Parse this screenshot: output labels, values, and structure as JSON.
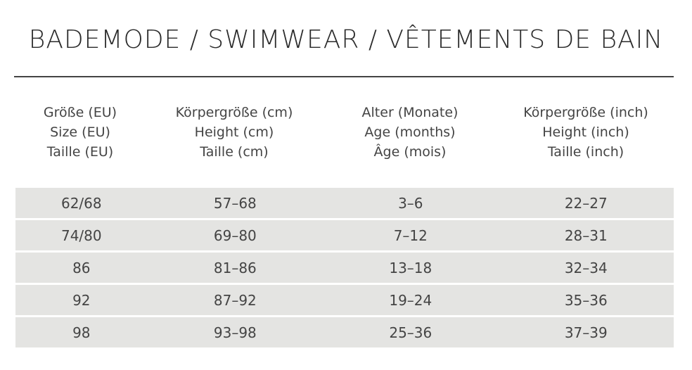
{
  "header": {
    "title": "BADEMODE / SWIMWEAR / VÊTEMENTS DE BAIN"
  },
  "table": {
    "columns": [
      [
        "Größe (EU)",
        "Size (EU)",
        "Taille (EU)"
      ],
      [
        "Körpergröße (cm)",
        "Height (cm)",
        "Taille (cm)"
      ],
      [
        "Alter (Monate)",
        "Age (months)",
        "Âge (mois)"
      ],
      [
        "Körpergröße (inch)",
        "Height (inch)",
        "Taille (inch)"
      ]
    ],
    "rows": [
      [
        "62/68",
        "57–68",
        "3–6",
        "22–27"
      ],
      [
        "74/80",
        "69–80",
        "7–12",
        "28–31"
      ],
      [
        "86",
        "81–86",
        "13–18",
        "32–34"
      ],
      [
        "92",
        "87–92",
        "19–24",
        "35–36"
      ],
      [
        "98",
        "93–98",
        "25–36",
        "37–39"
      ]
    ]
  }
}
